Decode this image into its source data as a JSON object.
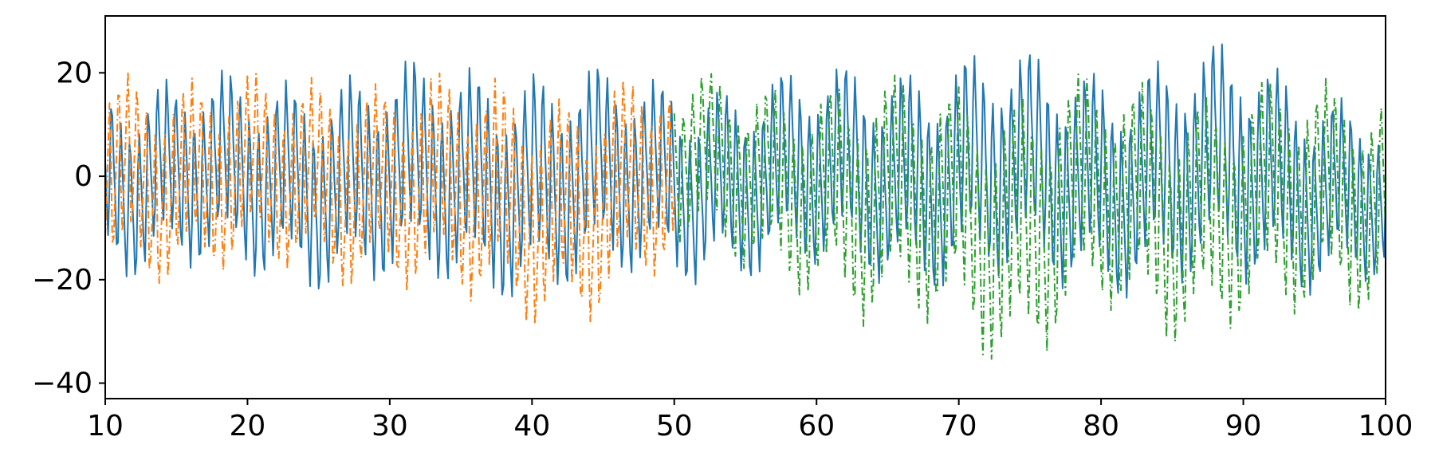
{
  "chart_data": {
    "type": "line",
    "title": "",
    "xlabel": "",
    "ylabel": "",
    "xlim": [
      10,
      100
    ],
    "ylim": [
      -43,
      31
    ],
    "xticks": [
      10,
      20,
      30,
      40,
      50,
      60,
      70,
      80,
      90,
      100
    ],
    "yticks": [
      -40,
      -20,
      0,
      20
    ],
    "ytick_labels": [
      "−40",
      "−20",
      "0",
      "20"
    ],
    "grid": false,
    "legend": "none",
    "series": [
      {
        "color": "#1f77b4",
        "style": "solid",
        "x_range": [
          10,
          100
        ],
        "x_step": 0.1,
        "approx_range": [
          -25,
          27
        ],
        "envelope": [
          {
            "x": 10,
            "min": -20,
            "max": 20
          },
          {
            "x": 20,
            "min": -22,
            "max": 21
          },
          {
            "x": 30,
            "min": -24,
            "max": 23
          },
          {
            "x": 40,
            "min": -25,
            "max": 24
          },
          {
            "x": 50,
            "min": -22,
            "max": 20
          },
          {
            "x": 60,
            "min": -21,
            "max": 22
          },
          {
            "x": 70,
            "min": -23,
            "max": 26
          },
          {
            "x": 80,
            "min": -24,
            "max": 24
          },
          {
            "x": 90,
            "min": -24,
            "max": 27
          },
          {
            "x": 100,
            "min": -22,
            "max": 14
          }
        ]
      },
      {
        "color": "#ff7f0e",
        "style": "dashdot",
        "x_range": [
          10,
          50
        ],
        "x_step": 0.1,
        "approx_range": [
          -31,
          23
        ],
        "envelope": [
          {
            "x": 10,
            "min": -22,
            "max": 23
          },
          {
            "x": 20,
            "min": -21,
            "max": 20
          },
          {
            "x": 30,
            "min": -23,
            "max": 21
          },
          {
            "x": 37,
            "min": -30,
            "max": 20
          },
          {
            "x": 42,
            "min": -31,
            "max": 19
          },
          {
            "x": 46,
            "min": -28,
            "max": 20
          },
          {
            "x": 50,
            "min": -21,
            "max": 21
          }
        ]
      },
      {
        "color": "#2ca02c",
        "style": "dashdot",
        "x_range": [
          50,
          100
        ],
        "x_step": 0.1,
        "approx_range": [
          -40,
          22
        ],
        "envelope": [
          {
            "x": 50,
            "min": -15,
            "max": 21
          },
          {
            "x": 60,
            "min": -24,
            "max": 21
          },
          {
            "x": 63,
            "min": -32,
            "max": 20
          },
          {
            "x": 70,
            "min": -31,
            "max": 21
          },
          {
            "x": 74,
            "min": -40,
            "max": 20
          },
          {
            "x": 80,
            "min": -29,
            "max": 21
          },
          {
            "x": 85,
            "min": -33,
            "max": 20
          },
          {
            "x": 90,
            "min": -30,
            "max": 20
          },
          {
            "x": 94,
            "min": -31,
            "max": 20
          },
          {
            "x": 100,
            "min": -26,
            "max": 20
          }
        ]
      }
    ]
  }
}
